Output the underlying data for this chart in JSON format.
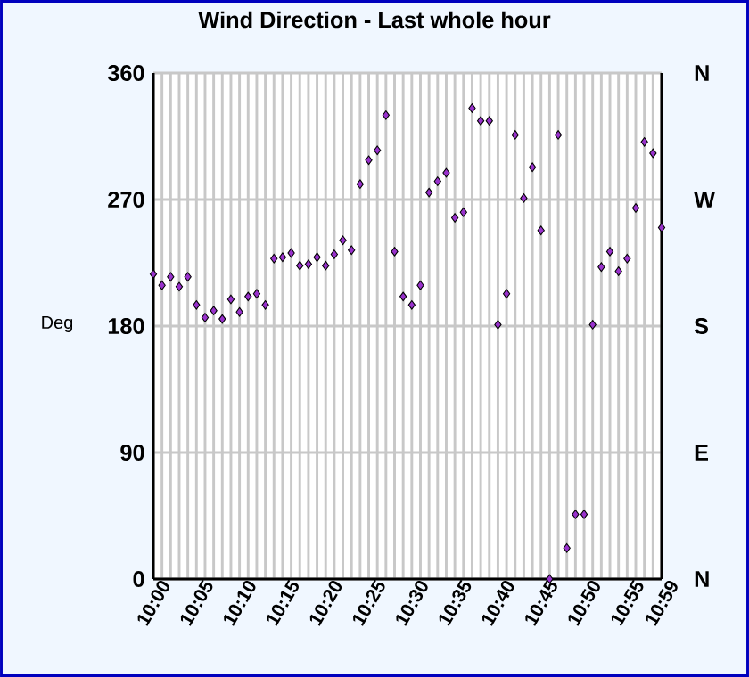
{
  "chart_data": {
    "type": "scatter",
    "title": "Wind Direction - Last whole hour",
    "ylabel": "Deg",
    "categories": [
      "10:00",
      null,
      null,
      null,
      null,
      "10:05",
      null,
      null,
      null,
      null,
      "10:10",
      null,
      null,
      null,
      null,
      "10:15",
      null,
      null,
      null,
      null,
      "10:20",
      null,
      null,
      null,
      null,
      "10:25",
      null,
      null,
      null,
      null,
      "10:30",
      null,
      null,
      null,
      null,
      "10:35",
      null,
      null,
      null,
      null,
      "10:40",
      null,
      null,
      null,
      null,
      "10:45",
      null,
      null,
      null,
      null,
      "10:50",
      null,
      null,
      null,
      null,
      "10:55",
      null,
      null,
      null,
      "10:59"
    ],
    "series": [
      {
        "color": "#9932cc",
        "values": [
          217,
          209,
          215,
          208,
          215,
          195,
          186,
          191,
          185,
          199,
          190,
          201,
          203,
          195,
          228,
          229,
          232,
          223,
          224,
          229,
          223,
          231,
          241,
          234,
          281,
          298,
          305,
          330,
          233,
          201,
          195,
          209,
          275,
          283,
          289,
          257,
          261,
          335,
          326,
          326,
          181,
          203,
          316,
          271,
          293,
          248,
          0,
          316,
          22,
          46,
          46,
          181,
          222,
          233,
          219,
          228,
          264,
          311,
          303,
          250
        ]
      }
    ],
    "ylim": [
      0,
      360
    ],
    "yticks": [
      0,
      90,
      180,
      270,
      360
    ],
    "annotations": [
      "N",
      "E",
      "S",
      "W",
      "N"
    ],
    "grid": true,
    "marker": "diamond"
  }
}
